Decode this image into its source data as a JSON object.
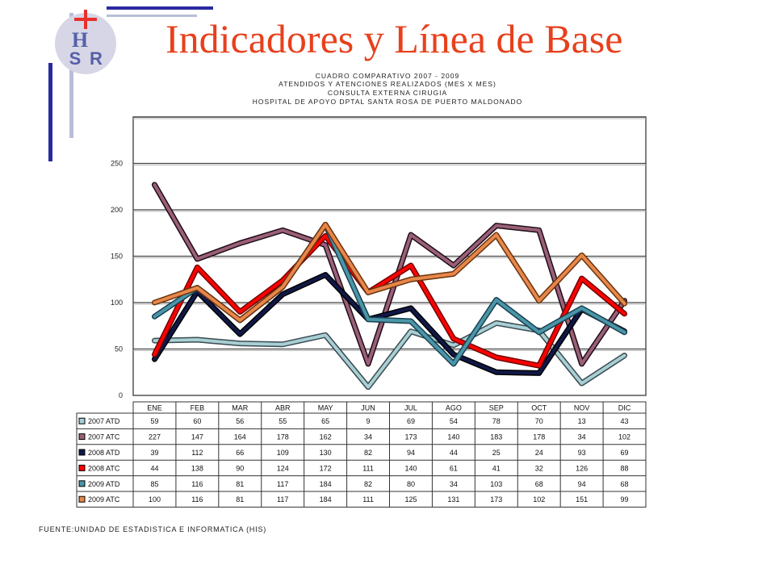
{
  "header": {
    "title": "Indicadores y Línea de Base",
    "logo_text": "HSR",
    "logo_letters": [
      "H",
      "S",
      "R"
    ]
  },
  "chart_subtitles": [
    "CUADRO COMPARATIVO 2007 - 2009",
    "ATENDIDOS Y ATENCIONES REALIZADOS (MES X MES)",
    "CONSULTA EXTERNA CIRUGIA",
    "HOSPITAL DE APOYO DPTAL SANTA ROSA DE PUERTO MALDONADO"
  ],
  "footer": {
    "source": "FUENTE:UNIDAD DE ESTADISTICA E INFORMATICA (HIS)"
  },
  "chart_data": {
    "type": "line",
    "categories": [
      "ENE",
      "FEB",
      "MAR",
      "ABR",
      "MAY",
      "JUN",
      "JUL",
      "AGO",
      "SEP",
      "OCT",
      "NOV",
      "DIC"
    ],
    "ylim": [
      0,
      300
    ],
    "yticks": [
      0,
      50,
      100,
      150,
      200,
      250
    ],
    "grid": true,
    "legend_placement": "data-table-below",
    "series": [
      {
        "name": "2007 ATD",
        "color": "#a8cfd4",
        "edge": "#3a4a50",
        "values": [
          59,
          60,
          56,
          55,
          65,
          9,
          69,
          54,
          78,
          70,
          13,
          43
        ]
      },
      {
        "name": "2007 ATC",
        "color": "#9a6078",
        "edge": "#1e0c16",
        "values": [
          227,
          147,
          164,
          178,
          162,
          34,
          173,
          140,
          183,
          178,
          34,
          102
        ]
      },
      {
        "name": "2008 ATD",
        "color": "#101848",
        "edge": "#000000",
        "values": [
          39,
          112,
          66,
          109,
          130,
          82,
          94,
          44,
          25,
          24,
          93,
          69
        ]
      },
      {
        "name": "2008 ATC",
        "color": "#ff0000",
        "edge": "#700000",
        "values": [
          44,
          138,
          90,
          124,
          172,
          111,
          140,
          61,
          41,
          32,
          126,
          88
        ]
      },
      {
        "name": "2009 ATD",
        "color": "#4a96a8",
        "edge": "#1a4050",
        "values": [
          85,
          116,
          81,
          117,
          184,
          82,
          80,
          34,
          103,
          68,
          94,
          68
        ]
      },
      {
        "name": "2009 ATC",
        "color": "#e8874a",
        "edge": "#6a3410",
        "values": [
          100,
          116,
          81,
          117,
          184,
          111,
          125,
          131,
          173,
          102,
          151,
          99
        ]
      }
    ],
    "table_values": {
      "2007 ATD": [
        "59",
        "60",
        "56",
        "55",
        "65",
        "9",
        "69",
        "54",
        "78",
        "70",
        "13",
        "43"
      ],
      "2007 ATC": [
        "227",
        "147",
        "164",
        "178",
        "162",
        "34",
        "173",
        "140",
        "183",
        "178",
        "34",
        "102"
      ],
      "2008 ATD": [
        "39",
        "112",
        "66",
        "109",
        "130",
        "82",
        "94",
        "44",
        "25",
        "24",
        "93",
        "69"
      ],
      "2008 ATC": [
        "44",
        "138",
        "90",
        "124",
        "172",
        "111",
        "140",
        "61",
        "41",
        "32",
        "126",
        "88"
      ],
      "2009 ATD": [
        "85",
        "116",
        "81",
        "117",
        "184",
        "82",
        "80",
        "34",
        "103",
        "68",
        "94",
        "68"
      ],
      "2009 ATC": [
        "100",
        "116",
        "81",
        "117",
        "184",
        "111",
        "125",
        "131",
        "173",
        "102",
        "151",
        "99"
      ]
    }
  }
}
